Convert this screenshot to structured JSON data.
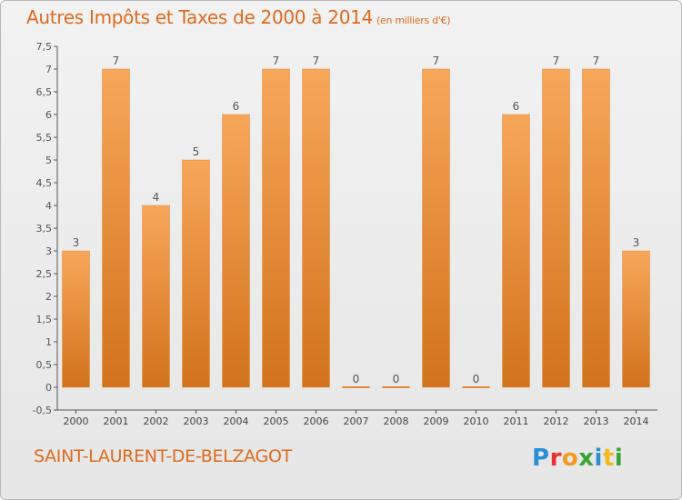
{
  "header": {
    "title": "Autres Impôts et Taxes de 2000 à 2014",
    "unit": "(en milliers d'€)"
  },
  "footer": {
    "commune": "SAINT-LAURENT-DE-BELZAGOT",
    "logo_text": "Proxiti",
    "logo_colors": [
      "#2b8fd6",
      "#e8312f",
      "#f39a1e",
      "#3aa535",
      "#2b8fd6",
      "#f3b81e",
      "#3aa535"
    ]
  },
  "chart_data": {
    "type": "bar",
    "categories": [
      "2000",
      "2001",
      "2002",
      "2003",
      "2004",
      "2005",
      "2006",
      "2007",
      "2008",
      "2009",
      "2010",
      "2011",
      "2012",
      "2013",
      "2014"
    ],
    "values": [
      3,
      7,
      4,
      5,
      6,
      7,
      7,
      0,
      0,
      7,
      0,
      6,
      7,
      7,
      3
    ],
    "data_labels": [
      "3",
      "7",
      "4",
      "5",
      "6",
      "7",
      "7",
      "0",
      "0",
      "7",
      "0",
      "6",
      "7",
      "7",
      "3"
    ],
    "y_ticks": [
      "-0,5",
      "0",
      "0,5",
      "1",
      "1,5",
      "2",
      "2,5",
      "3",
      "3,5",
      "4",
      "4,5",
      "5",
      "5,5",
      "6",
      "6,5",
      "7",
      "7,5"
    ],
    "ylim": [
      -0.5,
      7.5
    ],
    "title": "Autres Impôts et Taxes de 2000 à 2014",
    "xlabel": "",
    "ylabel": "",
    "grid": false,
    "colors": {
      "bar_light": "#f7a75a",
      "bar_dark": "#d2721c",
      "text": "#555555",
      "title": "#e06a1e"
    }
  }
}
